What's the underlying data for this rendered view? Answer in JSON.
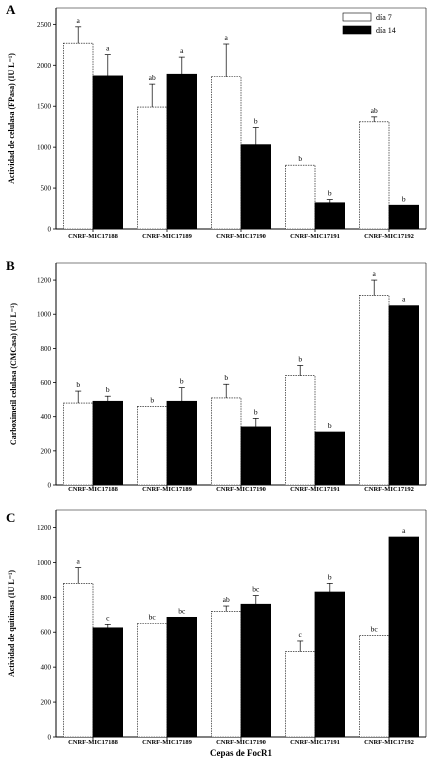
{
  "colors": {
    "day7_fill": "#ffffff",
    "day14_fill": "#000000",
    "axis": "#000000"
  },
  "legend": {
    "entries": [
      "día 7",
      "día 14"
    ],
    "position": "top-right"
  },
  "x_axis_title": "Cepas de FocR1",
  "chart_data": [
    {
      "panel": "A",
      "type": "bar",
      "ylabel": "Actividad de celulasa (FPasa) (IU L⁻¹)",
      "ylim": [
        0,
        2700
      ],
      "yticks": [
        0,
        500,
        1000,
        1500,
        2000,
        2500
      ],
      "categories": [
        "CNRF-MIC17188",
        "CNRF-MIC17189",
        "CNRF-MIC17190",
        "CNRF-MIC17191",
        "CNRF-MIC17192"
      ],
      "series": [
        {
          "name": "día 7",
          "values": [
            2270,
            1490,
            1860,
            780,
            1310
          ],
          "errors": [
            200,
            280,
            400,
            0,
            60
          ],
          "letters": [
            "a",
            "ab",
            "a",
            "b",
            "ab"
          ]
        },
        {
          "name": "día 14",
          "values": [
            1870,
            1890,
            1030,
            320,
            290
          ],
          "errors": [
            260,
            210,
            210,
            40,
            0
          ],
          "letters": [
            "a",
            "a",
            "b",
            "b",
            "b"
          ]
        }
      ]
    },
    {
      "panel": "B",
      "type": "bar",
      "ylabel": "Carboximetil celulasa (CMCasa) (IU L⁻¹)",
      "ylim": [
        0,
        1300
      ],
      "yticks": [
        0,
        200,
        400,
        600,
        800,
        1000,
        1200
      ],
      "categories": [
        "CNRF-MIC17188",
        "CNRF-MIC17189",
        "CNRF-MIC17190",
        "CNRF-MIC17191",
        "CNRF-MIC17192"
      ],
      "series": [
        {
          "name": "día 7",
          "values": [
            480,
            460,
            510,
            640,
            1110
          ],
          "errors": [
            70,
            0,
            80,
            60,
            90
          ],
          "letters": [
            "b",
            "b",
            "b",
            "b",
            "a"
          ]
        },
        {
          "name": "día 14",
          "values": [
            490,
            490,
            340,
            310,
            1050
          ],
          "errors": [
            30,
            80,
            50,
            0,
            0
          ],
          "letters": [
            "b",
            "b",
            "b",
            "b",
            "a"
          ]
        }
      ]
    },
    {
      "panel": "C",
      "type": "bar",
      "ylabel": "Actividad de quitinasa (IU L⁻¹)",
      "ylim": [
        0,
        1300
      ],
      "yticks": [
        0,
        200,
        400,
        600,
        800,
        1000,
        1200
      ],
      "categories": [
        "CNRF-MIC17188",
        "CNRF-MIC17189",
        "CNRF-MIC17190",
        "CNRF-MIC17191",
        "CNRF-MIC17192"
      ],
      "series": [
        {
          "name": "día 7",
          "values": [
            880,
            650,
            720,
            490,
            580
          ],
          "errors": [
            90,
            0,
            30,
            60,
            0
          ],
          "letters": [
            "a",
            "bc",
            "ab",
            "c",
            "bc"
          ]
        },
        {
          "name": "día 14",
          "values": [
            625,
            685,
            760,
            830,
            1145
          ],
          "errors": [
            20,
            0,
            50,
            50,
            0
          ],
          "letters": [
            "c",
            "bc",
            "bc",
            "b",
            "a"
          ]
        }
      ]
    }
  ]
}
